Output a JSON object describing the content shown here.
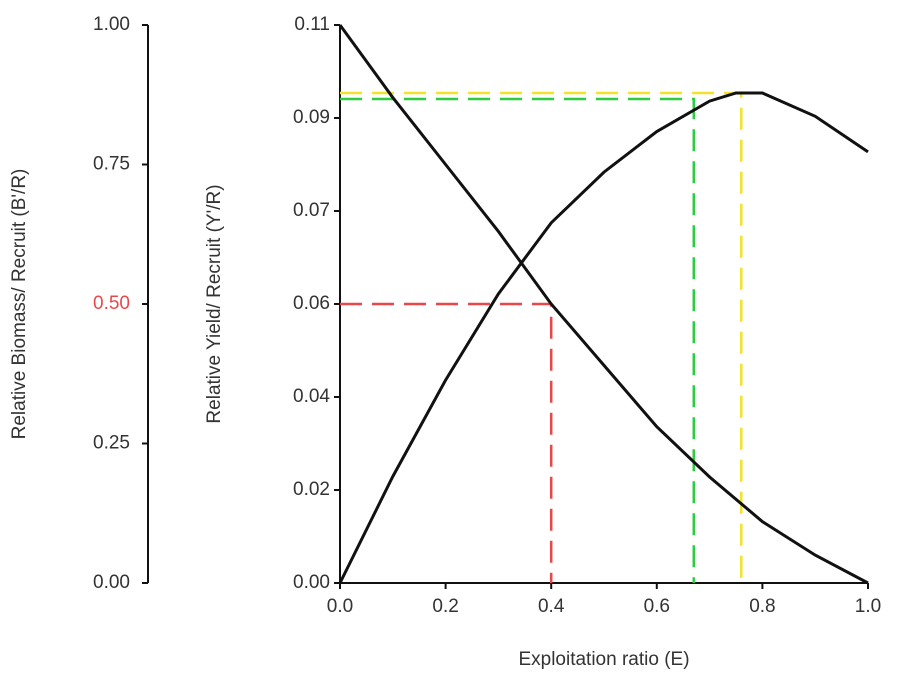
{
  "chart_data": {
    "type": "line",
    "xlabel": "Exploitation ratio (E)",
    "ylabel": "Relative Yield/ Recruit (Y'/R)",
    "y2label": "Relative Biomass/ Recruit (B'/R)",
    "xlim": [
      0,
      1
    ],
    "xticks": [
      {
        "value": 0,
        "label": "0.0"
      },
      {
        "value": 0.2,
        "label": "0.2"
      },
      {
        "value": 0.4,
        "label": "0.4"
      },
      {
        "value": 0.6,
        "label": "0.6"
      },
      {
        "value": 0.8,
        "label": "0.8"
      },
      {
        "value": 1,
        "label": "1.0"
      }
    ],
    "ylim": [
      0,
      0.11
    ],
    "yticks": [
      {
        "value": 0,
        "label": "0.00"
      },
      {
        "value": 0.01833,
        "label": "0.02"
      },
      {
        "value": 0.03667,
        "label": "0.04"
      },
      {
        "value": 0.055,
        "label": "0.06"
      },
      {
        "value": 0.07333,
        "label": "0.07"
      },
      {
        "value": 0.09167,
        "label": "0.09"
      },
      0.11
    ],
    "y2lim": [
      0,
      1
    ],
    "y2ticks": [
      {
        "value": 0,
        "label": "0.00"
      },
      {
        "value": 0.25,
        "label": "0.25"
      },
      {
        "value": 0.5,
        "label": "0.50",
        "color": "#e8484a"
      },
      {
        "value": 0.75,
        "label": "0.75"
      },
      {
        "value": 1,
        "label": "1.00"
      }
    ],
    "series": [
      {
        "color": "#111111",
        "axis": "y2",
        "x": [
          0,
          0.1,
          0.2,
          0.3,
          0.4,
          0.5,
          0.6,
          0.7,
          0.8,
          0.9,
          1
        ],
        "values": [
          1.0,
          0.87,
          0.75,
          0.63,
          0.5,
          0.39,
          0.28,
          0.19,
          0.11,
          0.05,
          0.0
        ]
      },
      {
        "color": "#111111",
        "axis": "y",
        "x": [
          0,
          0.1,
          0.2,
          0.3,
          0.4,
          0.5,
          0.6,
          0.7,
          0.75,
          0.8,
          0.9,
          1
        ],
        "values": [
          0,
          0.021,
          0.04,
          0.057,
          0.071,
          0.081,
          0.089,
          0.095,
          0.0966,
          0.0966,
          0.092,
          0.085
        ]
      }
    ],
    "reference_lines": [
      {
        "color": "#e8484a",
        "x": 0.4,
        "y": 0.5,
        "axis": "y2"
      },
      {
        "color": "#2ecc40",
        "x": 0.67,
        "y": 0.0954,
        "axis": "y"
      },
      {
        "color": "#f2e22a",
        "x": 0.76,
        "y": 0.0966,
        "axis": "y"
      }
    ]
  }
}
